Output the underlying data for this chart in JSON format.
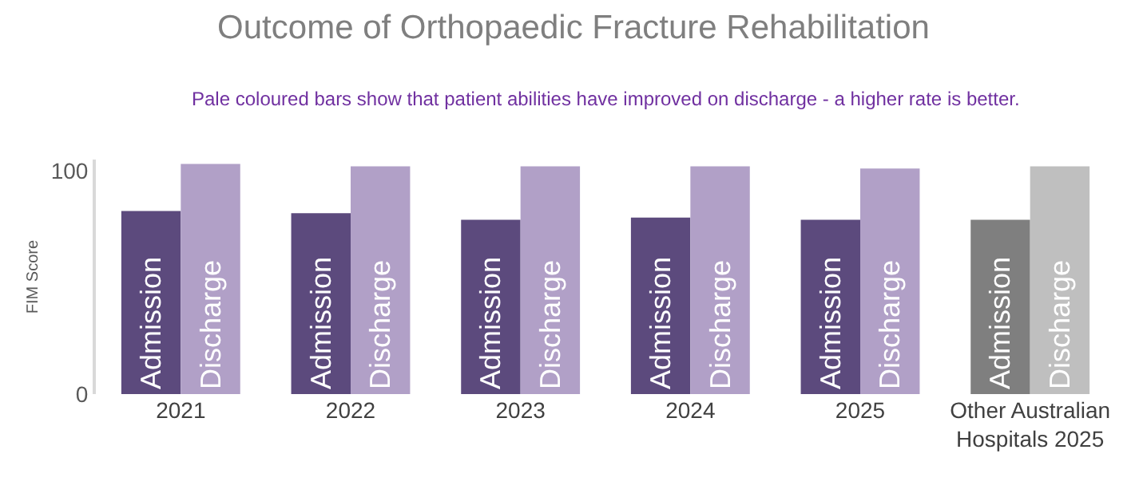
{
  "chart_data": {
    "type": "bar",
    "title": "Outcome of Orthopaedic Fracture Rehabilitation",
    "annotations": [
      "Pale coloured bars show that patient abilities have improved on discharge - a higher rate is better."
    ],
    "ylabel": "FIM Score",
    "categories": [
      "2021",
      "2022",
      "2023",
      "2024",
      "2025",
      "Other Australian\nHospitals 2025"
    ],
    "series": [
      {
        "name": "Admission",
        "colors": [
          "#5c4a7d",
          "#5c4a7d",
          "#5c4a7d",
          "#5c4a7d",
          "#5c4a7d",
          "#7f7f7f"
        ],
        "values": [
          82,
          81,
          78,
          79,
          78,
          78
        ]
      },
      {
        "name": "Discharge",
        "colors": [
          "#b1a0c7",
          "#b1a0c7",
          "#b1a0c7",
          "#b1a0c7",
          "#b1a0c7",
          "#bfbfbf"
        ],
        "values": [
          103,
          102,
          102,
          102,
          101,
          102
        ]
      }
    ],
    "ylim": [
      0,
      105
    ],
    "yticks": [
      0,
      100
    ],
    "legend": false
  }
}
